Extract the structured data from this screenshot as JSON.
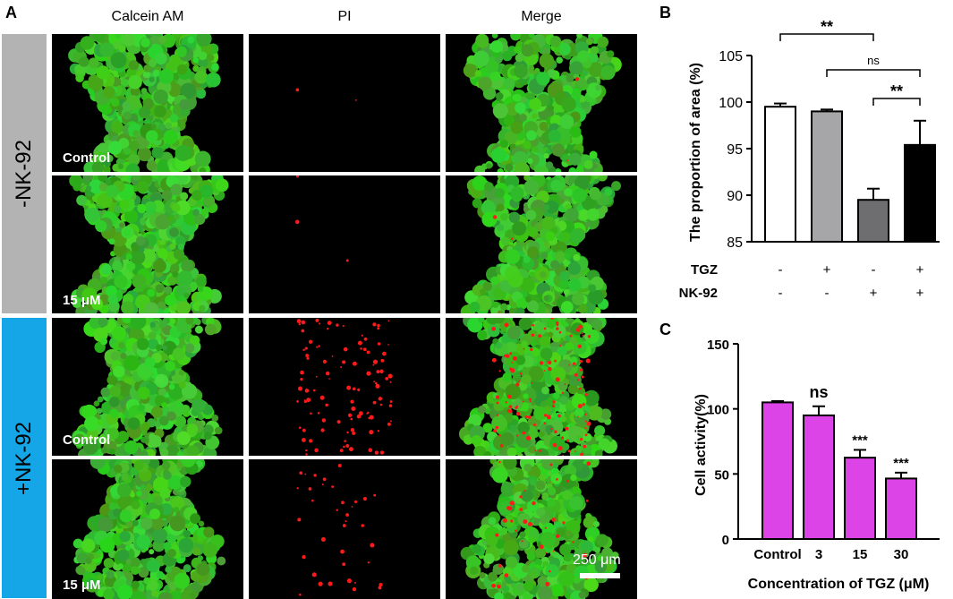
{
  "panel_labels": {
    "a": "A",
    "b": "B",
    "c": "C"
  },
  "microscopy": {
    "columns": [
      "Calcein AM",
      "PI",
      "Merge"
    ],
    "groups": [
      "-NK-92",
      "+NK-92"
    ],
    "row_labels": [
      "Control",
      "15 μM",
      "Control",
      "15 μM"
    ],
    "scale_bar": "250 μm",
    "colors": {
      "live": "#39c52c",
      "dead": "#ff1a1a",
      "group_neg": "#b3b3b3",
      "group_pos": "#14a6e6",
      "background": "#000000"
    },
    "dead_cell_density": [
      0.02,
      0.03,
      0.9,
      0.3
    ]
  },
  "chart_data": [
    {
      "type": "bar",
      "ylabel": "The proportion of area (%)",
      "ylim": [
        85,
        105
      ],
      "yticks": [
        "85",
        "90",
        "95",
        "100",
        "105"
      ],
      "values": [
        99.5,
        99.0,
        89.5,
        95.4
      ],
      "errors": [
        0.35,
        0.2,
        1.2,
        2.6
      ],
      "bar_colors": [
        "#ffffff",
        "#a6a6a8",
        "#6e6e70",
        "#000000"
      ],
      "row_labels": [
        "TGZ",
        "NK-92"
      ],
      "rows": [
        [
          "-",
          "+",
          "-",
          "+"
        ],
        [
          "-",
          "-",
          "+",
          "+"
        ]
      ],
      "significance": [
        {
          "from": 0,
          "to": 2,
          "label": "**"
        },
        {
          "from": 1,
          "to": 3,
          "label": "ns"
        },
        {
          "from": 2,
          "to": 3,
          "label": "**"
        }
      ]
    },
    {
      "type": "bar",
      "xlabel": "Concentration of TGZ (μM)",
      "ylabel": "Cell activity(%)",
      "ylim": [
        0,
        150
      ],
      "yticks": [
        "0",
        "50",
        "100",
        "150"
      ],
      "categories": [
        "Control",
        "3",
        "15",
        "30"
      ],
      "values": [
        105,
        95,
        62.5,
        46.5
      ],
      "errors": [
        1.0,
        7.0,
        6.0,
        4.5
      ],
      "annotations": [
        "",
        "ns",
        "***",
        "***"
      ],
      "bar_color": "#dd44e8"
    }
  ]
}
